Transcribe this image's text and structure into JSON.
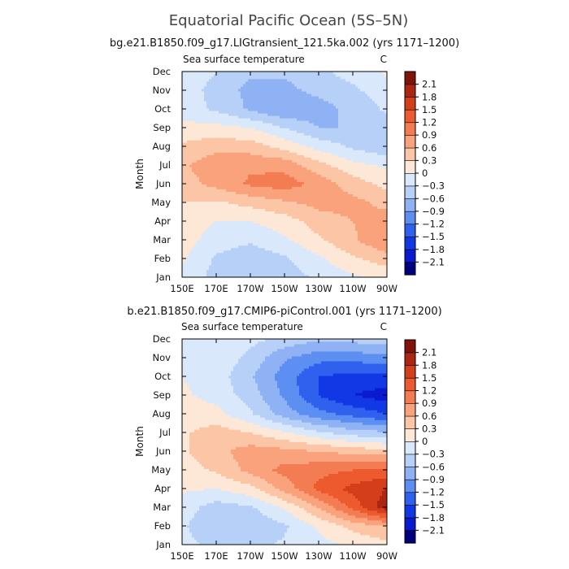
{
  "main_title": "Equatorial Pacific Ocean (5S–5N)",
  "colors": [
    "#00007f",
    "#0a1ad1",
    "#1238e6",
    "#2f61ee",
    "#5d8ff2",
    "#8fb2f5",
    "#b7d0f8",
    "#d9e8fb",
    "#fde8d7",
    "#fcc6a6",
    "#f9a27b",
    "#f47c52",
    "#ec5a2e",
    "#d43e1b",
    "#ab2712",
    "#82130a"
  ],
  "chart_data": [
    {
      "type": "heatmap",
      "title": "bg.e21.B1850.f09_g17.LIGtransient_121.5ka.002 (yrs 1171–1200)",
      "left_label": "Sea surface temperature",
      "right_label": "C",
      "ylabel": "Month",
      "x_ticks": [
        "150E",
        "170E",
        "170W",
        "150W",
        "130W",
        "110W",
        "90W"
      ],
      "y_ticks": [
        "Jan",
        "Feb",
        "Mar",
        "Apr",
        "May",
        "Jun",
        "Jul",
        "Aug",
        "Sep",
        "Oct",
        "Nov",
        "Dec"
      ],
      "x_values_deg_east": [
        150,
        170,
        190,
        210,
        230,
        250,
        270
      ],
      "y_values_month": [
        1,
        2,
        3,
        4,
        5,
        6,
        7,
        8,
        9,
        10,
        11,
        12
      ],
      "z": [
        [
          -0.1,
          -0.4,
          -0.55,
          -0.45,
          -0.25,
          -0.05,
          0.1
        ],
        [
          0.05,
          -0.35,
          -0.5,
          -0.35,
          -0.05,
          0.25,
          0.45
        ],
        [
          0.15,
          -0.15,
          -0.25,
          -0.05,
          0.25,
          0.55,
          0.9
        ],
        [
          0.15,
          0.0,
          0.0,
          0.15,
          0.45,
          0.6,
          0.75
        ],
        [
          0.3,
          0.25,
          0.4,
          0.55,
          0.7,
          0.7,
          0.5
        ],
        [
          0.45,
          0.7,
          0.95,
          1.05,
          0.8,
          0.45,
          0.2
        ],
        [
          0.55,
          0.8,
          0.85,
          0.8,
          0.4,
          0.1,
          -0.05
        ],
        [
          0.35,
          0.5,
          0.45,
          0.2,
          -0.1,
          -0.35,
          -0.55
        ],
        [
          0.1,
          0.1,
          0.0,
          -0.3,
          -0.6,
          -0.6,
          -0.4
        ],
        [
          -0.15,
          -0.35,
          -0.65,
          -0.9,
          -0.75,
          -0.5,
          -0.25
        ],
        [
          -0.15,
          -0.4,
          -0.7,
          -0.7,
          -0.5,
          -0.35,
          -0.15
        ],
        [
          -0.1,
          -0.3,
          -0.55,
          -0.55,
          -0.35,
          -0.2,
          0.05
        ]
      ],
      "colorbar": {
        "levels": [
          -2.1,
          -1.8,
          -1.5,
          -1.2,
          -0.9,
          -0.6,
          -0.3,
          0,
          0.3,
          0.6,
          0.9,
          1.2,
          1.5,
          1.8,
          2.1
        ],
        "labels": [
          "2.1",
          "1.8",
          "1.5",
          "1.2",
          "0.9",
          "0.6",
          "0.3",
          "0",
          "−0.3",
          "−0.6",
          "−0.9",
          "−1.2",
          "−1.5",
          "−1.8",
          "−2.1"
        ]
      }
    },
    {
      "type": "heatmap",
      "title": "b.e21.B1850.f09_g17.CMIP6-piControl.001 (yrs 1171–1200)",
      "left_label": "Sea surface temperature",
      "right_label": "C",
      "ylabel": "Month",
      "x_ticks": [
        "150E",
        "170E",
        "170W",
        "150W",
        "130W",
        "110W",
        "90W"
      ],
      "y_ticks": [
        "Jan",
        "Feb",
        "Mar",
        "Apr",
        "May",
        "Jun",
        "Jul",
        "Aug",
        "Sep",
        "Oct",
        "Nov",
        "Dec"
      ],
      "x_values_deg_east": [
        150,
        170,
        190,
        210,
        230,
        250,
        270
      ],
      "y_values_month": [
        1,
        2,
        3,
        4,
        5,
        6,
        7,
        8,
        9,
        10,
        11,
        12
      ],
      "z": [
        [
          -0.2,
          -0.4,
          -0.4,
          -0.25,
          -0.1,
          0.05,
          0.2
        ],
        [
          -0.25,
          -0.55,
          -0.55,
          -0.35,
          0.05,
          0.4,
          0.6
        ],
        [
          -0.15,
          -0.45,
          -0.35,
          0.05,
          0.6,
          1.3,
          2.0
        ],
        [
          0.05,
          0.0,
          0.2,
          0.7,
          1.3,
          1.6,
          1.8
        ],
        [
          0.15,
          0.35,
          0.7,
          1.0,
          1.1,
          1.2,
          1.3
        ],
        [
          0.25,
          0.5,
          0.75,
          0.7,
          0.6,
          0.5,
          0.4
        ],
        [
          0.25,
          0.45,
          0.3,
          0.05,
          -0.25,
          -0.45,
          -0.55
        ],
        [
          0.15,
          0.1,
          -0.25,
          -0.75,
          -1.1,
          -1.3,
          -1.5
        ],
        [
          0.05,
          -0.1,
          -0.45,
          -0.95,
          -1.5,
          -1.8,
          -1.95
        ],
        [
          0.0,
          -0.15,
          -0.55,
          -1.05,
          -1.5,
          -1.6,
          -1.6
        ],
        [
          0.0,
          -0.05,
          -0.4,
          -0.85,
          -1.1,
          -1.1,
          -1.0
        ],
        [
          0.0,
          0.0,
          -0.2,
          -0.4,
          -0.55,
          -0.5,
          -0.4
        ]
      ],
      "colorbar": {
        "levels": [
          -2.1,
          -1.8,
          -1.5,
          -1.2,
          -0.9,
          -0.6,
          -0.3,
          0,
          0.3,
          0.6,
          0.9,
          1.2,
          1.5,
          1.8,
          2.1
        ],
        "labels": [
          "2.1",
          "1.8",
          "1.5",
          "1.2",
          "0.9",
          "0.6",
          "0.3",
          "0",
          "−0.3",
          "−0.6",
          "−0.9",
          "−1.2",
          "−1.5",
          "−1.8",
          "−2.1"
        ]
      }
    }
  ]
}
